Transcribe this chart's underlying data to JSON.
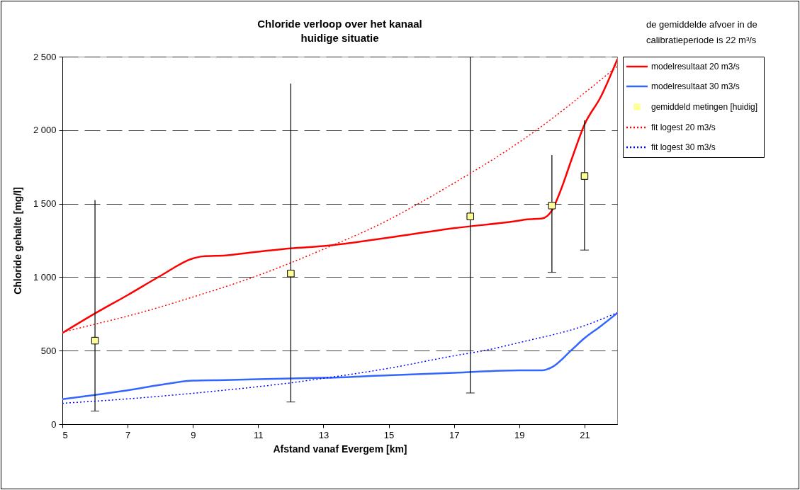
{
  "chart_data": {
    "type": "line",
    "title": "Chloride verloop over het kanaal",
    "subtitle": "huidige situatie",
    "xlabel": "Afstand vanaf Evergem [km]",
    "ylabel": "Chloride gehalte [mg/l]",
    "annotations": [
      "de gemiddelde afvoer in de calibratieperiode is 22 m³/s"
    ],
    "xlim": [
      5,
      22
    ],
    "xticks": [
      5,
      7,
      9,
      11,
      13,
      15,
      17,
      19,
      21
    ],
    "ylim": [
      0,
      2500
    ],
    "yticks": [
      0,
      500,
      {
        "value": 1000,
        "label": "1 000"
      },
      {
        "value": 1500,
        "label": "1 500"
      },
      {
        "value": 2000,
        "label": "2 000"
      },
      {
        "value": 2500,
        "label": "2 500"
      }
    ],
    "grid": "y",
    "legend": "right",
    "series": [
      {
        "name": "modelresultaat 20 m3/s",
        "color": "#ff0000",
        "line_style": "solid",
        "marker": "none",
        "x": [
          5,
          6,
          7,
          8,
          9,
          9.3,
          10,
          11,
          12,
          13,
          15,
          17,
          19,
          19.2,
          19.7,
          20,
          20.3,
          20.6,
          21,
          21.5,
          22
        ],
        "values": [
          620,
          753,
          878,
          1008,
          1127,
          1141,
          1148,
          1173,
          1196,
          1211,
          1269,
          1333,
          1385,
          1392,
          1399,
          1454,
          1609,
          1799,
          2039,
          2228,
          2480
        ]
      },
      {
        "name": "modelresultaat 30 m3/s",
        "color": "#3366ff",
        "line_style": "solid",
        "marker": "none",
        "x": [
          5,
          6,
          7,
          8,
          9,
          10,
          12,
          13,
          15,
          17,
          19,
          19.7,
          20,
          20.6,
          21,
          21.5,
          22
        ],
        "values": [
          170,
          199,
          230,
          267,
          296,
          300,
          311,
          315,
          332,
          349,
          366,
          366,
          387,
          504,
          585,
          667,
          755
        ]
      },
      {
        "name": "gemiddeld metingen [huidig]",
        "type": "scatter",
        "color": "#ffff99",
        "marker": "square",
        "x": [
          6,
          12,
          17.5,
          20,
          21
        ],
        "values": [
          568,
          1025,
          1413,
          1487,
          1688
        ],
        "errors": [
          [
            89,
            1524
          ],
          [
            151,
            2317
          ],
          [
            212,
            2500
          ],
          [
            1033,
            1830
          ],
          [
            1184,
            2066
          ]
        ]
      },
      {
        "name": "fit logest 20 m3/s",
        "type": "line",
        "color": "#ff0000",
        "line_style": "dotted",
        "marker": "none",
        "x": [
          5,
          6,
          7,
          9,
          11,
          13,
          15,
          15.83,
          17,
          19,
          20,
          21,
          22
        ],
        "values": [
          625,
          680,
          735,
          865,
          1012,
          1190,
          1390,
          1490,
          1640,
          1918,
          2078,
          2253,
          2434
        ]
      },
      {
        "name": "fit logest 30 m3/s",
        "type": "line",
        "color": "#0000ff",
        "line_style": "dotted",
        "marker": "none",
        "x": [
          5,
          7,
          9,
          11,
          12,
          13,
          15,
          17,
          18,
          19,
          21,
          22
        ],
        "values": [
          142,
          172,
          210,
          255,
          281,
          312,
          380,
          465,
          504,
          555,
          670,
          758
        ]
      }
    ]
  }
}
